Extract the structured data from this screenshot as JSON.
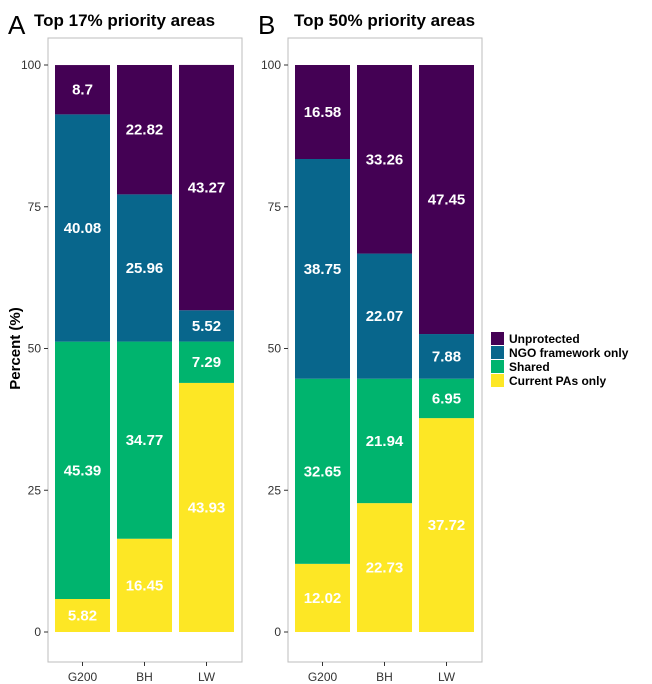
{
  "chart_data": [
    {
      "type": "bar",
      "stacked": true,
      "panel_letter": "A",
      "title": "Top 17% priority areas",
      "ylabel": "Percent (%)",
      "ylim": [
        0,
        100
      ],
      "yticks": [
        0,
        25,
        50,
        75,
        100
      ],
      "categories": [
        "G200",
        "BH",
        "LW"
      ],
      "series": [
        {
          "name": "Current PAs only",
          "color": "#fde725",
          "values": [
            5.82,
            16.45,
            43.93
          ]
        },
        {
          "name": "Shared",
          "color": "#00b46e",
          "values": [
            45.39,
            34.77,
            7.29
          ]
        },
        {
          "name": "NGO framework only",
          "color": "#08668c",
          "values": [
            40.08,
            25.96,
            5.52
          ]
        },
        {
          "name": "Unprotected",
          "color": "#440154",
          "values": [
            8.7,
            22.82,
            43.27
          ]
        }
      ]
    },
    {
      "type": "bar",
      "stacked": true,
      "panel_letter": "B",
      "title": "Top 50% priority areas",
      "ylim": [
        0,
        100
      ],
      "yticks": [
        0,
        25,
        50,
        75,
        100
      ],
      "categories": [
        "G200",
        "BH",
        "LW"
      ],
      "series": [
        {
          "name": "Current PAs only",
          "color": "#fde725",
          "values": [
            12.02,
            22.73,
            37.72
          ]
        },
        {
          "name": "Shared",
          "color": "#00b46e",
          "values": [
            32.65,
            21.94,
            6.95
          ]
        },
        {
          "name": "NGO framework only",
          "color": "#08668c",
          "values": [
            38.75,
            22.07,
            7.88
          ]
        },
        {
          "name": "Unprotected",
          "color": "#440154",
          "values": [
            16.58,
            33.26,
            47.45
          ]
        }
      ]
    }
  ],
  "legend": {
    "position": "right",
    "items": [
      {
        "label": "Unprotected",
        "color": "#440154"
      },
      {
        "label": "NGO framework only",
        "color": "#08668c"
      },
      {
        "label": "Shared",
        "color": "#00b46e"
      },
      {
        "label": "Current PAs only",
        "color": "#fde725"
      }
    ]
  }
}
